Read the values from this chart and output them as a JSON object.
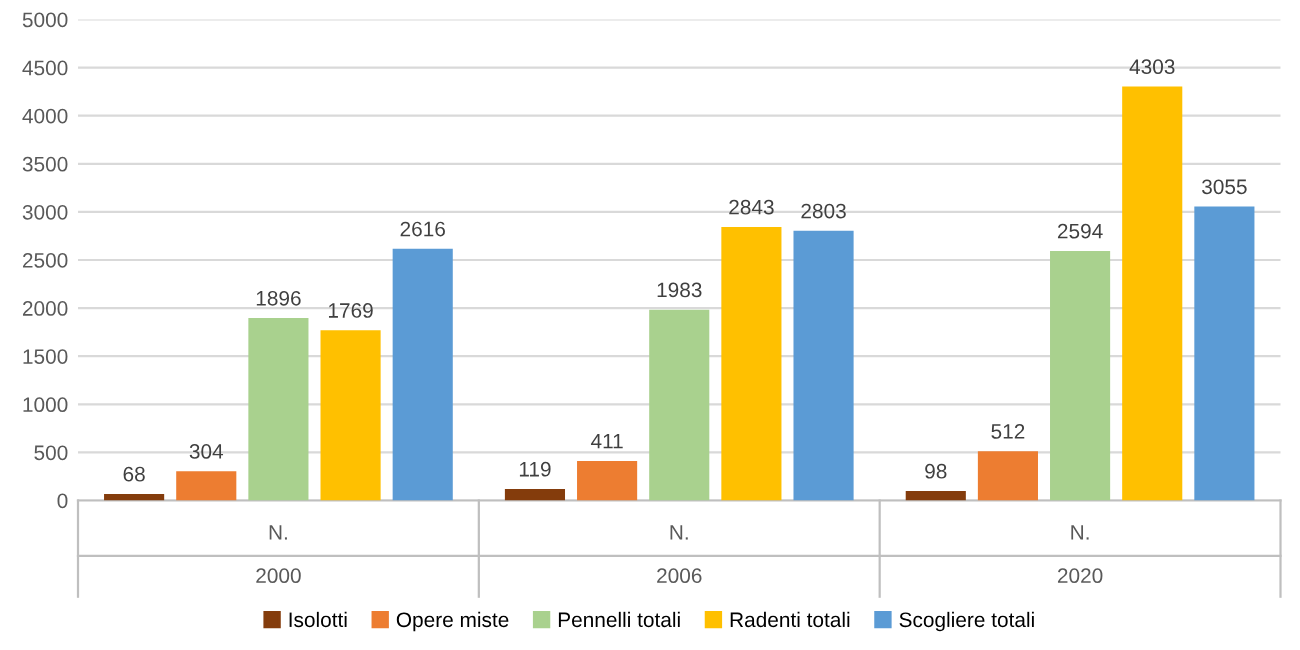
{
  "chart_data": {
    "type": "bar",
    "categories": [
      "2000",
      "2006",
      "2020"
    ],
    "annotations": [
      "N.",
      "N.",
      "N."
    ],
    "series": [
      {
        "name": "Isolotti",
        "color": "#843c0c",
        "values": [
          68,
          119,
          98
        ]
      },
      {
        "name": "Opere miste",
        "color": "#ed7d31",
        "values": [
          304,
          411,
          512
        ]
      },
      {
        "name": "Pennelli totali",
        "color": "#a9d18e",
        "values": [
          1896,
          1983,
          2594
        ]
      },
      {
        "name": "Radenti totali",
        "color": "#ffc000",
        "values": [
          1769,
          2843,
          4303
        ]
      },
      {
        "name": "Scogliere totali",
        "color": "#5b9bd5",
        "values": [
          2616,
          2803,
          3055
        ]
      }
    ],
    "ylim": [
      0,
      5000
    ],
    "yticks": [
      0,
      500,
      1000,
      1500,
      2000,
      2500,
      3000,
      3500,
      4000,
      4500,
      5000
    ],
    "grid": "y",
    "legend": "bottom",
    "data_labels": true
  }
}
